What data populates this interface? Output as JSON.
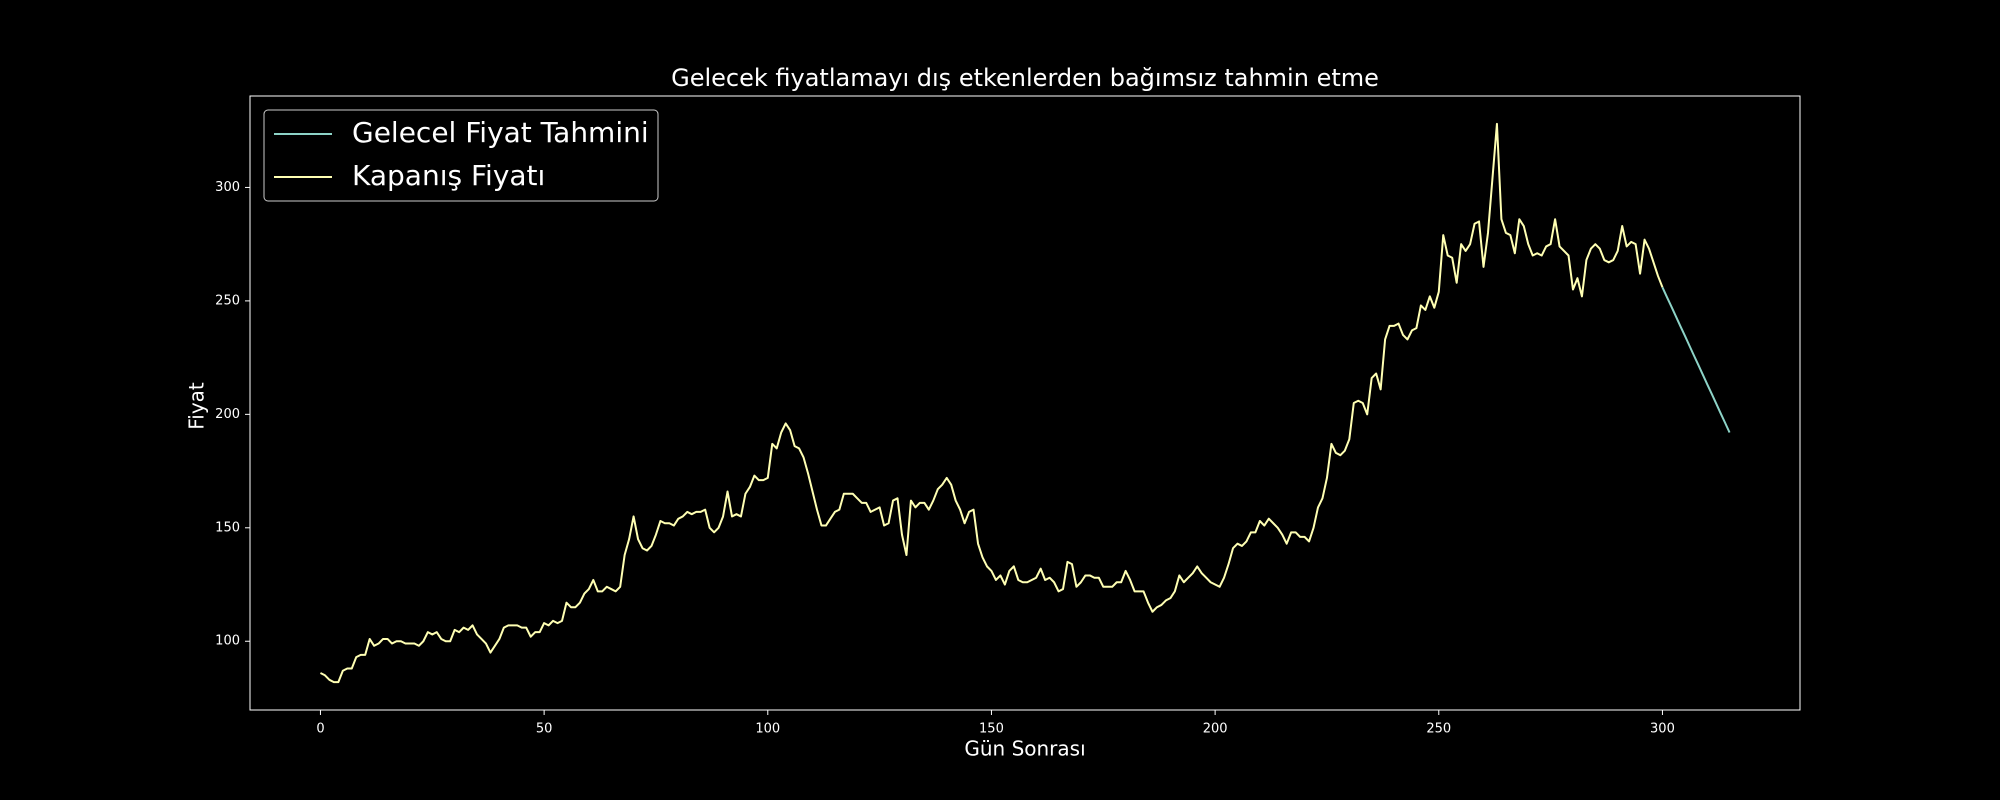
{
  "chart_data": {
    "type": "line",
    "title": "Gelecek fiyatlamayı dış etkenlerden bağımsız tahmin etme",
    "xlabel": "Gün Sonrası",
    "ylabel": "Fiyat",
    "xlim": [
      -15.75,
      330.75
    ],
    "ylim": [
      69.7,
      340.3
    ],
    "xticks": [
      0,
      50,
      100,
      150,
      200,
      250,
      300
    ],
    "yticks": [
      100,
      150,
      200,
      250,
      300
    ],
    "grid": false,
    "legend": "upper left",
    "series": [
      {
        "name": "Gelecel Fiyat Tahmini",
        "color": "#8dd3c7",
        "x": [
          300,
          301,
          302,
          303,
          304,
          305,
          306,
          307,
          308,
          309,
          310,
          311,
          312,
          313,
          314,
          315
        ],
        "values": [
          256,
          251.7,
          247.5,
          243.2,
          238.9,
          234.7,
          230.4,
          226.1,
          221.9,
          217.6,
          213.3,
          209.1,
          204.8,
          200.5,
          196.3,
          192
        ]
      },
      {
        "name": "Kapanış Fiyatı",
        "color": "#ffffb3",
        "x": [
          0,
          1,
          2,
          3,
          4,
          5,
          6,
          7,
          8,
          9,
          10,
          11,
          12,
          13,
          14,
          15,
          16,
          17,
          18,
          19,
          20,
          21,
          22,
          23,
          24,
          25,
          26,
          27,
          28,
          29,
          30,
          31,
          32,
          33,
          34,
          35,
          36,
          37,
          38,
          39,
          40,
          41,
          42,
          43,
          44,
          45,
          46,
          47,
          48,
          49,
          50,
          51,
          52,
          53,
          54,
          55,
          56,
          57,
          58,
          59,
          60,
          61,
          62,
          63,
          64,
          65,
          66,
          67,
          68,
          69,
          70,
          71,
          72,
          73,
          74,
          75,
          76,
          77,
          78,
          79,
          80,
          81,
          82,
          83,
          84,
          85,
          86,
          87,
          88,
          89,
          90,
          91,
          92,
          93,
          94,
          95,
          96,
          97,
          98,
          99,
          100,
          101,
          102,
          103,
          104,
          105,
          106,
          107,
          108,
          109,
          110,
          111,
          112,
          113,
          114,
          115,
          116,
          117,
          118,
          119,
          120,
          121,
          122,
          123,
          124,
          125,
          126,
          127,
          128,
          129,
          130,
          131,
          132,
          133,
          134,
          135,
          136,
          137,
          138,
          139,
          140,
          141,
          142,
          143,
          144,
          145,
          146,
          147,
          148,
          149,
          150,
          151,
          152,
          153,
          154,
          155,
          156,
          157,
          158,
          159,
          160,
          161,
          162,
          163,
          164,
          165,
          166,
          167,
          168,
          169,
          170,
          171,
          172,
          173,
          174,
          175,
          176,
          177,
          178,
          179,
          180,
          181,
          182,
          183,
          184,
          185,
          186,
          187,
          188,
          189,
          190,
          191,
          192,
          193,
          194,
          195,
          196,
          197,
          198,
          199,
          200,
          201,
          202,
          203,
          204,
          205,
          206,
          207,
          208,
          209,
          210,
          211,
          212,
          213,
          214,
          215,
          216,
          217,
          218,
          219,
          220,
          221,
          222,
          223,
          224,
          225,
          226,
          227,
          228,
          229,
          230,
          231,
          232,
          233,
          234,
          235,
          236,
          237,
          238,
          239,
          240,
          241,
          242,
          243,
          244,
          245,
          246,
          247,
          248,
          249,
          250,
          251,
          252,
          253,
          254,
          255,
          256,
          257,
          258,
          259,
          260,
          261,
          262,
          263,
          264,
          265,
          266,
          267,
          268,
          269,
          270,
          271,
          272,
          273,
          274,
          275,
          276,
          277,
          278,
          279,
          280,
          281,
          282,
          283,
          284,
          285,
          286,
          287,
          288,
          289,
          290,
          291,
          292,
          293,
          294,
          295,
          296,
          297,
          298,
          299,
          300
        ],
        "values": [
          86,
          85,
          83,
          82,
          82,
          87,
          88,
          88,
          93,
          94,
          94,
          101,
          98,
          99,
          101,
          101,
          99,
          100,
          100,
          99,
          99,
          99,
          98,
          100,
          104,
          103,
          104,
          101,
          100,
          100,
          105,
          104,
          106,
          105,
          107,
          103,
          101,
          99,
          95,
          98,
          101,
          106,
          107,
          107,
          107,
          106,
          106,
          102,
          104,
          104,
          108,
          107,
          109,
          108,
          109,
          117,
          115,
          115,
          117,
          121,
          123,
          127,
          122,
          122,
          124,
          123,
          122,
          124,
          138,
          145,
          155,
          145,
          141,
          140,
          142,
          147,
          153,
          152,
          152,
          151,
          154,
          155,
          157,
          156,
          157,
          157,
          158,
          150,
          148,
          150,
          155,
          166,
          155,
          156,
          155,
          165,
          168,
          173,
          171,
          171,
          172,
          187,
          185,
          192,
          196,
          193,
          186,
          185,
          181,
          174,
          166,
          158,
          151,
          151,
          154,
          157,
          158,
          165,
          165,
          165,
          163,
          161,
          161,
          157,
          158,
          159,
          151,
          152,
          162,
          163,
          147,
          138,
          162,
          159,
          161,
          161,
          158,
          162,
          167,
          169,
          172,
          169,
          162,
          158,
          152,
          157,
          158,
          143,
          137,
          133,
          131,
          127,
          129,
          125,
          131,
          133,
          127,
          126,
          126,
          127,
          128,
          132,
          127,
          128,
          126,
          122,
          123,
          135,
          134,
          124,
          126,
          129,
          129,
          128,
          128,
          124,
          124,
          124,
          126,
          126,
          131,
          127,
          122,
          122,
          122,
          117,
          113,
          115,
          116,
          118,
          119,
          122,
          129,
          126,
          128,
          130,
          133,
          130,
          128,
          126,
          125,
          124,
          128,
          134,
          141,
          143,
          142,
          144,
          148,
          148,
          153,
          151,
          154,
          152,
          150,
          147,
          143,
          148,
          148,
          146,
          146,
          144,
          150,
          159,
          163,
          172,
          187,
          183,
          182,
          184,
          189,
          205,
          206,
          205,
          200,
          216,
          218,
          211,
          233,
          239,
          239,
          240,
          235,
          233,
          237,
          238,
          248,
          246,
          252,
          247,
          254,
          279,
          270,
          269,
          258,
          275,
          272,
          275,
          284,
          285,
          265,
          280,
          304,
          328,
          286,
          280,
          279,
          271,
          286,
          283,
          275,
          270,
          271,
          270,
          274,
          275,
          286,
          274,
          272,
          270,
          255,
          260,
          252,
          268,
          273,
          275,
          273,
          268,
          267,
          268,
          272,
          283,
          274,
          276,
          275,
          262,
          277,
          273,
          267,
          261,
          256
        ]
      }
    ]
  }
}
